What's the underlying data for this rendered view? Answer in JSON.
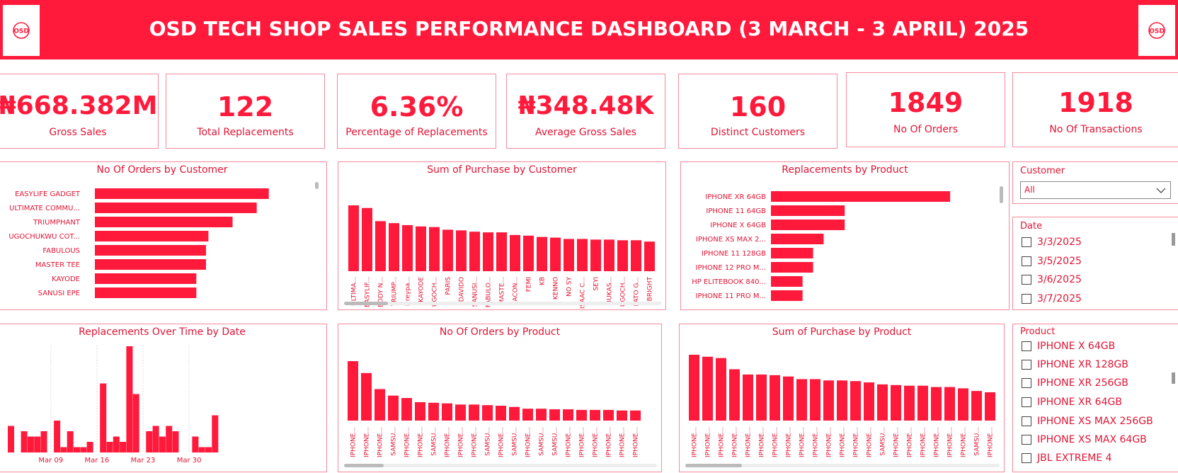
{
  "header": {
    "title": "OSD TECH SHOP SALES PERFORMANCE DASHBOARD (3 MARCH - 3 APRIL) 2025",
    "logo_text": "OSD"
  },
  "colors": {
    "accent": "#ff1a3c",
    "border": "#f58a9b"
  },
  "kpis": [
    {
      "value": "₦668.382M",
      "label": "Gross Sales"
    },
    {
      "value": "122",
      "label": "Total Replacements"
    },
    {
      "value": "6.36%",
      "label": "Percentage of Replacements"
    },
    {
      "value": "₦348.48K",
      "label": "Average Gross Sales"
    },
    {
      "value": "160",
      "label": "Distinct Customers"
    },
    {
      "value": "1849",
      "label": "No Of Orders"
    },
    {
      "value": "1918",
      "label": "No Of Transactions"
    }
  ],
  "slicers": {
    "customer": {
      "title": "Customer",
      "selected": "All"
    },
    "date": {
      "title": "Date",
      "items": [
        "3/3/2025",
        "3/5/2025",
        "3/6/2025",
        "3/7/2025"
      ]
    },
    "product": {
      "title": "Product",
      "items": [
        "IPHONE X 64GB",
        "IPHONE XR 128GB",
        "IPHONE XR 256GB",
        "IPHONE XR 64GB",
        "IPHONE XS MAX 256GB",
        "IPHONE XS MAX 64GB",
        "JBL EXTREME 4"
      ]
    }
  },
  "chart_data": [
    {
      "id": "orders_by_customer",
      "type": "bar",
      "orientation": "horizontal",
      "title": "No Of Orders by Customer",
      "categories": [
        "EASYLIFE GADGET",
        "ULTIMATE COMMU...",
        "TRIUMPHANT",
        "UGOCHUKWU COT...",
        "FABULOUS",
        "MASTER TEE",
        "KAYODE",
        "SANUSI EPE"
      ],
      "values": [
        72,
        67,
        57,
        47,
        46,
        46,
        42,
        42
      ],
      "xlim": [
        0,
        80
      ]
    },
    {
      "id": "purchase_by_customer",
      "type": "bar",
      "title": "Sum of Purchase by Customer",
      "categories": [
        "ULTIMA...",
        "EASYLIF...",
        "EDDY N...",
        "TRIUMP...",
        "Dreypa...",
        "KAYODE",
        "UGOCH...",
        "PARIS",
        "DAVIDO",
        "SANUSI...",
        "FABULO...",
        "MASTE...",
        "SACON...",
        "FEMI",
        "KB",
        "KENNO",
        "NO SY",
        "ISAAC C...",
        "SEYI",
        "BUKAS...",
        "UGOCH...",
        "PATO G...",
        "BRIGHT"
      ],
      "values": [
        100,
        96,
        76,
        73,
        70,
        68,
        67,
        63,
        62,
        60,
        59,
        59,
        55,
        54,
        52,
        51,
        49,
        49,
        48,
        48,
        47,
        47,
        45
      ],
      "ylim": [
        0,
        100
      ]
    },
    {
      "id": "replacements_by_product",
      "type": "bar",
      "orientation": "horizontal",
      "title": "Replacements by Product",
      "categories": [
        "IPHONE XR 64GB",
        "IPHONE 11 64GB",
        "IPHONE X 64GB",
        "IPHONE XS MAX 2...",
        "IPHONE 11 128GB",
        "IPHONE 12 PRO M...",
        "HP ELITEBOOK 840...",
        "IPHONE 11 PRO M..."
      ],
      "values": [
        17,
        7,
        7,
        5,
        4,
        4,
        3,
        3
      ],
      "xlim": [
        0,
        18
      ]
    },
    {
      "id": "replacements_over_time",
      "type": "bar",
      "title": "Replacements Over Time by Date",
      "x_ticks": [
        "Mar 09",
        "Mar 16",
        "Mar 23",
        "Mar 30"
      ],
      "x": [
        3,
        5,
        6,
        7,
        8,
        10,
        11,
        12,
        13,
        14,
        15,
        17,
        18,
        19,
        20,
        21,
        22,
        24,
        25,
        26,
        27,
        28,
        31,
        1,
        2,
        3
      ],
      "values": [
        5,
        4,
        3,
        3,
        4,
        6,
        1,
        4,
        1,
        1,
        2,
        13,
        2,
        3,
        2,
        20,
        11,
        4,
        5,
        3,
        5,
        4,
        3,
        1,
        1,
        7
      ],
      "ylim": [
        0,
        20
      ]
    },
    {
      "id": "orders_by_product",
      "type": "bar",
      "title": "No Of Orders by Product",
      "categories": [
        "IPHONE...",
        "IPHONE...",
        "IPHONE...",
        "SAMSU...",
        "IPHONE...",
        "IPHONE...",
        "SAMSU...",
        "IPHONE...",
        "IPHONE...",
        "IPHONE...",
        "SAMSU...",
        "IPHONE...",
        "SAMSU...",
        "IPHONE...",
        "SAMSU...",
        "SAMSU...",
        "IPHONE...",
        "IPHONE...",
        "IPHONE...",
        "IPHONE...",
        "IPHONE...",
        "IPHONE..."
      ],
      "values": [
        100,
        80,
        53,
        42,
        38,
        31,
        30,
        29,
        27,
        27,
        26,
        25,
        23,
        20,
        20,
        19,
        19,
        18,
        18,
        18,
        17,
        17
      ],
      "ylim": [
        0,
        100
      ]
    },
    {
      "id": "purchase_by_product",
      "type": "bar",
      "title": "Sum of Purchase by Product",
      "categories": [
        "IPHONE...",
        "IPHONE...",
        "IPHONE...",
        "IPHONE...",
        "IPHONE...",
        "IPHONE...",
        "IPHONE...",
        "IPHONE...",
        "IPHONE...",
        "IPHONE...",
        "IPHONE...",
        "IPHONE...",
        "IPHONE...",
        "IPHONE...",
        "SAMSU...",
        "IPHONE...",
        "IPHONE...",
        "IPHONE...",
        "IPHONE...",
        "IPHONE...",
        "IPHONE...",
        "SAMSU...",
        "IPHONE..."
      ],
      "values": [
        100,
        97,
        95,
        78,
        70,
        70,
        69,
        67,
        63,
        63,
        61,
        61,
        60,
        58,
        55,
        54,
        53,
        53,
        51,
        51,
        49,
        45,
        43
      ],
      "ylim": [
        0,
        100
      ]
    }
  ]
}
